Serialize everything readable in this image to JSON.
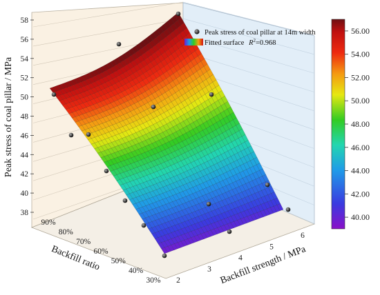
{
  "chart_data": {
    "type": "surface3d",
    "title": "",
    "zlabel": "Peak stress of coal pillar / MPa",
    "xlabel": "Backfill strength / MPa",
    "ylabel": "Backfill ratio",
    "zlim": [
      38,
      58
    ],
    "z_ticks": [
      "38",
      "40",
      "42",
      "44",
      "46",
      "48",
      "50",
      "52",
      "54",
      "56",
      "58"
    ],
    "x_ticks": [
      "2",
      "3",
      "4",
      "5",
      "6"
    ],
    "y_ticks": [
      "90%",
      "80%",
      "70%",
      "60%",
      "50%",
      "40%",
      "30%"
    ],
    "colorbar": {
      "range": [
        39,
        57
      ],
      "ticks": [
        "40.00",
        "42.00",
        "44.00",
        "46.00",
        "48.00",
        "50.00",
        "52.00",
        "54.00",
        "56.00"
      ]
    },
    "legend": {
      "position": "top-right",
      "scatter_label": "Peak stress of coal pillar at 14m width",
      "surface_label": "Fitted surface",
      "r2_label": "R",
      "r2_sup": "2",
      "r2_value": "=0.968"
    },
    "scatter_points": [
      {
        "strength": 2,
        "ratio": 90,
        "stress": 52.2
      },
      {
        "strength": 2,
        "ratio": 80,
        "stress": 47.0
      },
      {
        "strength": 2,
        "ratio": 70,
        "stress": 45.6
      },
      {
        "strength": 2,
        "ratio": 60,
        "stress": 42.8
      },
      {
        "strength": 2,
        "ratio": 50,
        "stress": 41.0
      },
      {
        "strength": 2,
        "ratio": 40,
        "stress": 39.8
      },
      {
        "strength": 2,
        "ratio": 30,
        "stress": 39.5
      },
      {
        "strength": 2,
        "ratio": 90,
        "stress": 56.0
      },
      {
        "strength": 3,
        "ratio": 60,
        "stress": 57.0
      },
      {
        "strength": 4,
        "ratio": 90,
        "stress": 58.0
      },
      {
        "strength": 5,
        "ratio": 60,
        "stress": 54.5
      },
      {
        "strength": 6,
        "ratio": 30,
        "stress": 47.5
      },
      {
        "strength": 5,
        "ratio": 40,
        "stress": 45.5
      },
      {
        "strength": 6,
        "ratio": 40,
        "stress": 42.5
      },
      {
        "strength": 3,
        "ratio": 30,
        "stress": 40.0
      }
    ]
  }
}
